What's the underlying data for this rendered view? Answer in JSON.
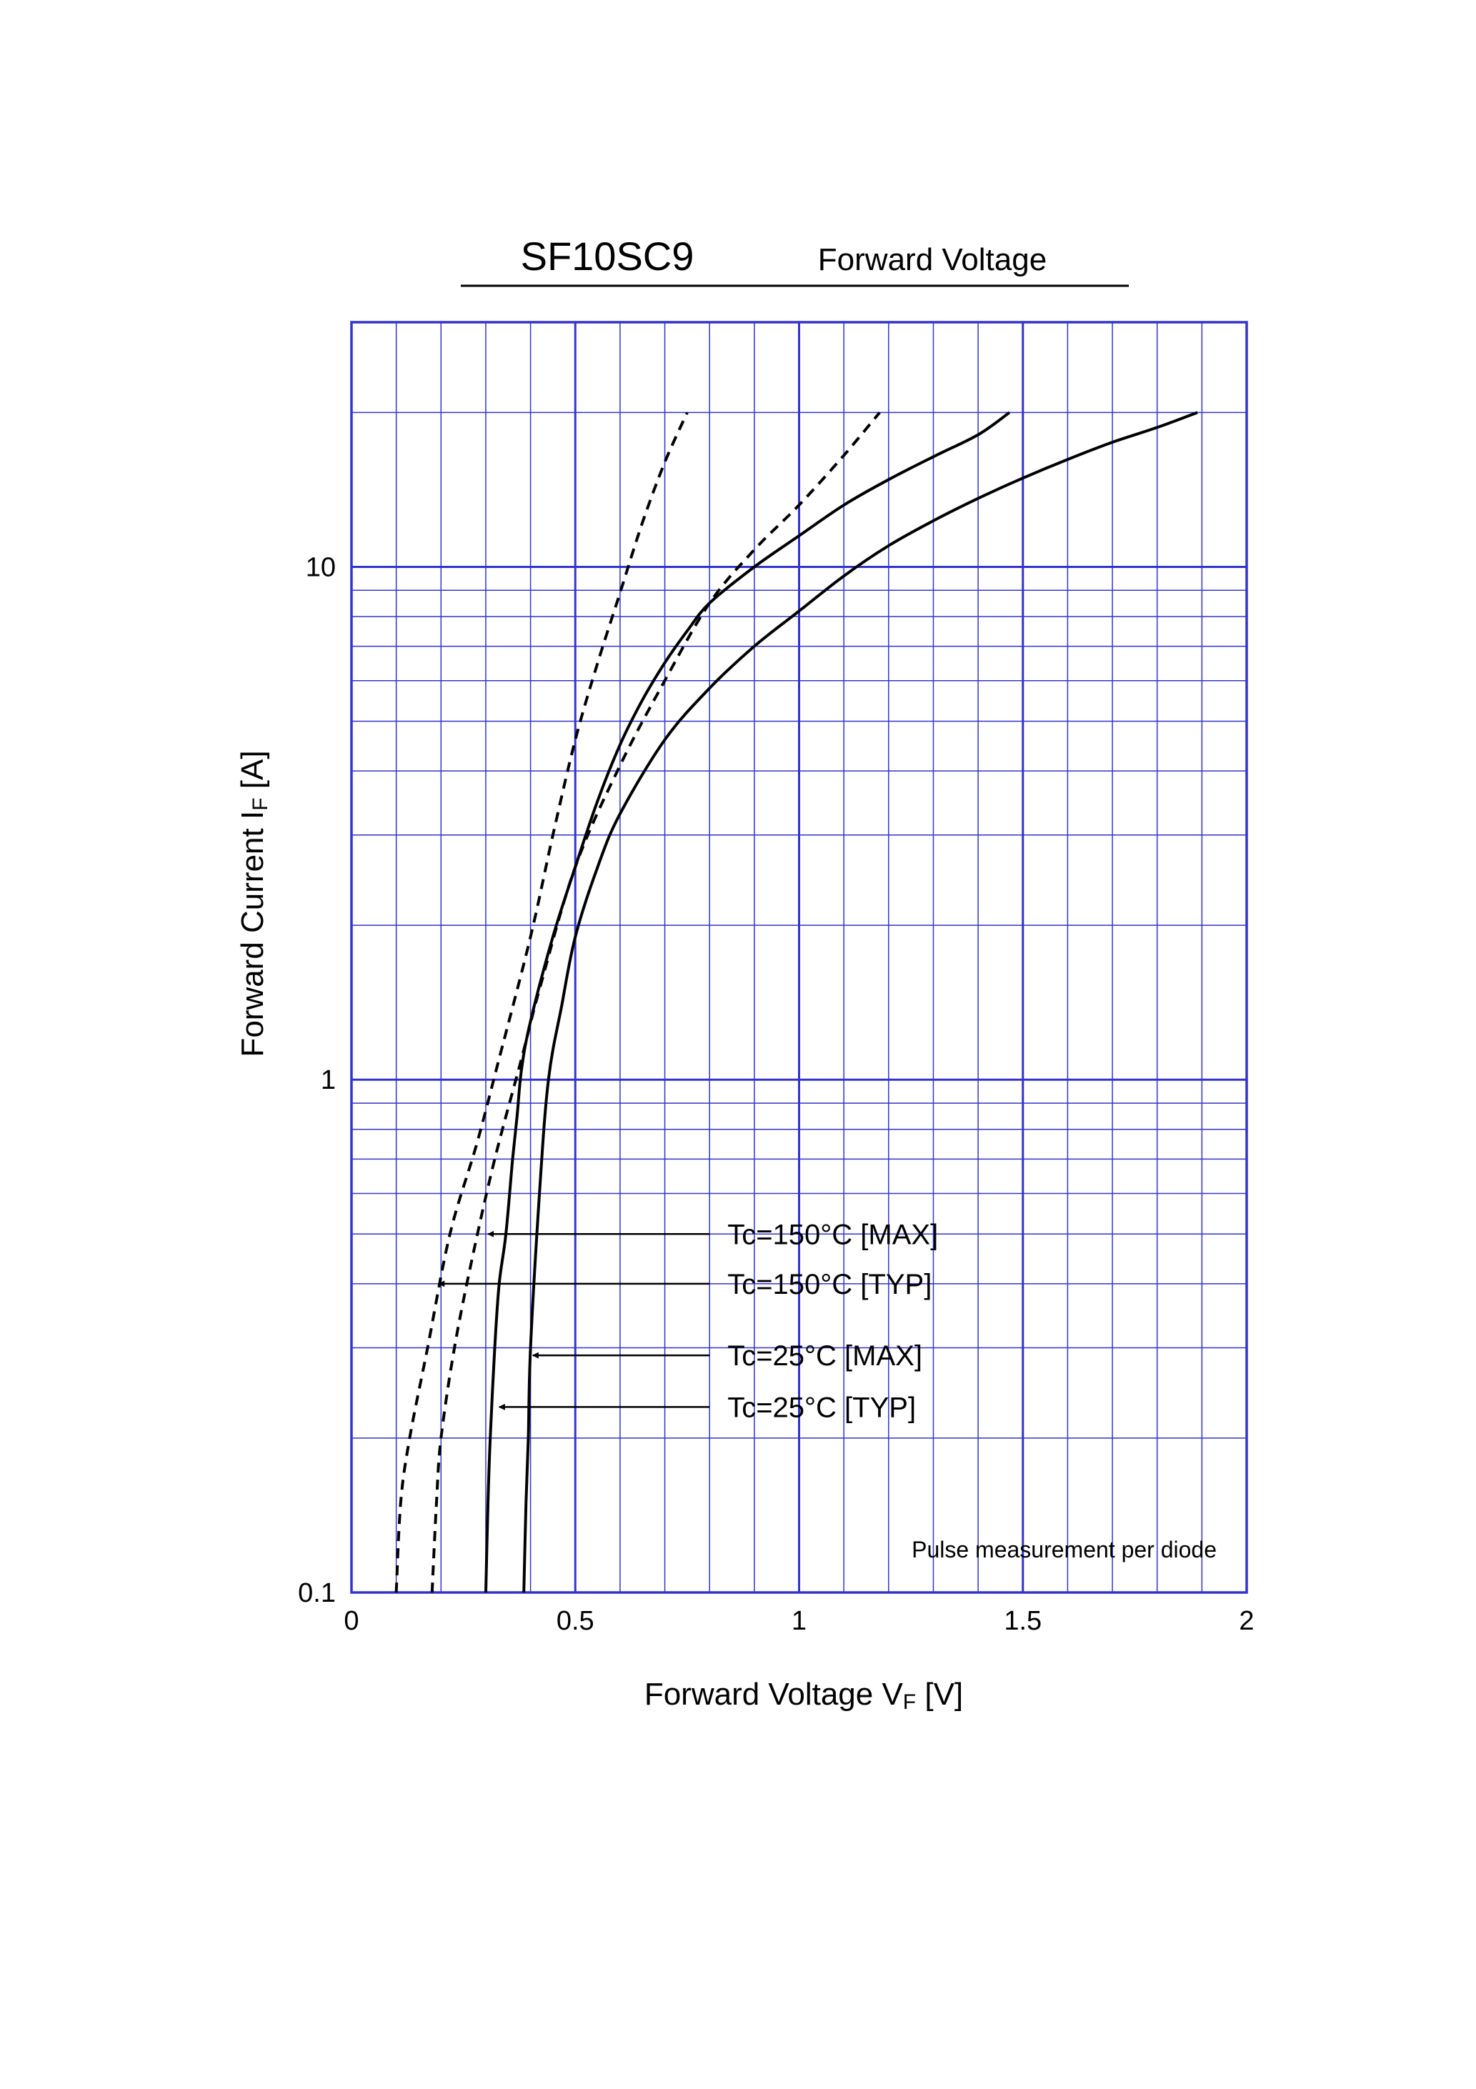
{
  "chart_data": {
    "type": "line",
    "title": "SF10SC9",
    "subtitle": "Forward Voltage",
    "xlabel": {
      "main": "Forward Voltage  V",
      "sub": "F",
      "unit": "  [V]"
    },
    "ylabel": {
      "main": "Forward Current  I",
      "sub": "F",
      "unit": "  [A]"
    },
    "xlim": [
      0,
      2
    ],
    "ylim": [
      0.1,
      30
    ],
    "y_scale": "log",
    "grid": true,
    "x_ticks": [
      {
        "value": 0,
        "label": "0"
      },
      {
        "value": 0.5,
        "label": "0.5"
      },
      {
        "value": 1,
        "label": "1"
      },
      {
        "value": 1.5,
        "label": "1.5"
      },
      {
        "value": 2,
        "label": "2"
      }
    ],
    "y_ticks": [
      {
        "value": 0.1,
        "label": "0.1"
      },
      {
        "value": 1,
        "label": "1"
      },
      {
        "value": 10,
        "label": "10"
      }
    ],
    "note": "Pulse measurement per diode",
    "series": [
      {
        "name": "Tc=150°C [MAX]",
        "style": "solid",
        "x": [
          0.3,
          0.305,
          0.31,
          0.32,
          0.33,
          0.345,
          0.36,
          0.37,
          0.38,
          0.4,
          0.45,
          0.5,
          0.55,
          0.6,
          0.65,
          0.7,
          0.75,
          0.8,
          0.9,
          1.0,
          1.1,
          1.2,
          1.3,
          1.4,
          1.47
        ],
        "y": [
          0.1,
          0.15,
          0.2,
          0.3,
          0.4,
          0.5,
          0.7,
          0.85,
          1.05,
          1.3,
          1.9,
          2.6,
          3.5,
          4.5,
          5.5,
          6.5,
          7.5,
          8.5,
          10.0,
          11.5,
          13.2,
          14.8,
          16.4,
          18.1,
          20.0
        ]
      },
      {
        "name": "Tc=150°C [TYP]",
        "style": "dashed",
        "x": [
          0.18,
          0.19,
          0.2,
          0.23,
          0.27,
          0.32,
          0.38,
          0.42,
          0.5,
          0.6,
          0.7,
          0.8,
          0.9,
          1.0,
          1.1,
          1.18
        ],
        "y": [
          0.1,
          0.15,
          0.2,
          0.3,
          0.45,
          0.7,
          1.1,
          1.5,
          2.6,
          4.1,
          6.0,
          8.5,
          10.8,
          13.2,
          16.5,
          20.0
        ]
      },
      {
        "name": "Tc=25°C [MAX]",
        "style": "solid",
        "x": [
          0.385,
          0.39,
          0.395,
          0.4,
          0.42,
          0.44,
          0.47,
          0.5,
          0.55,
          0.6,
          0.7,
          0.8,
          0.9,
          1.0,
          1.1,
          1.2,
          1.3,
          1.4,
          1.5,
          1.6,
          1.7,
          1.8,
          1.89
        ],
        "y": [
          0.1,
          0.15,
          0.2,
          0.3,
          0.6,
          1.0,
          1.4,
          1.9,
          2.6,
          3.3,
          4.6,
          5.8,
          7.0,
          8.2,
          9.6,
          11.0,
          12.3,
          13.6,
          14.9,
          16.2,
          17.5,
          18.7,
          20.0
        ]
      },
      {
        "name": "Tc=25°C [TYP]",
        "style": "dashed",
        "x": [
          0.1,
          0.11,
          0.13,
          0.17,
          0.22,
          0.28,
          0.33,
          0.4,
          0.45,
          0.5,
          0.55,
          0.6,
          0.65,
          0.7,
          0.75
        ],
        "y": [
          0.1,
          0.15,
          0.2,
          0.3,
          0.5,
          0.75,
          1.1,
          1.9,
          3.0,
          4.6,
          6.5,
          8.9,
          12.2,
          16.0,
          20.0
        ]
      }
    ],
    "annotations": [
      {
        "label": "Tc=150°C [MAX]",
        "arrow_from_x": 0.8,
        "arrow_to_x": 0.305,
        "y": 0.5
      },
      {
        "label": "Tc=150°C [TYP]",
        "arrow_from_x": 0.8,
        "arrow_to_x": 0.195,
        "y": 0.4
      },
      {
        "label": "Tc=25°C [MAX]",
        "arrow_from_x": 0.8,
        "arrow_to_x": 0.405,
        "y": 0.29
      },
      {
        "label": "Tc=25°C [TYP]",
        "arrow_from_x": 0.8,
        "arrow_to_x": 0.33,
        "y": 0.23
      }
    ],
    "colors": {
      "grid": "#3333cc",
      "curve": "#000000"
    }
  }
}
